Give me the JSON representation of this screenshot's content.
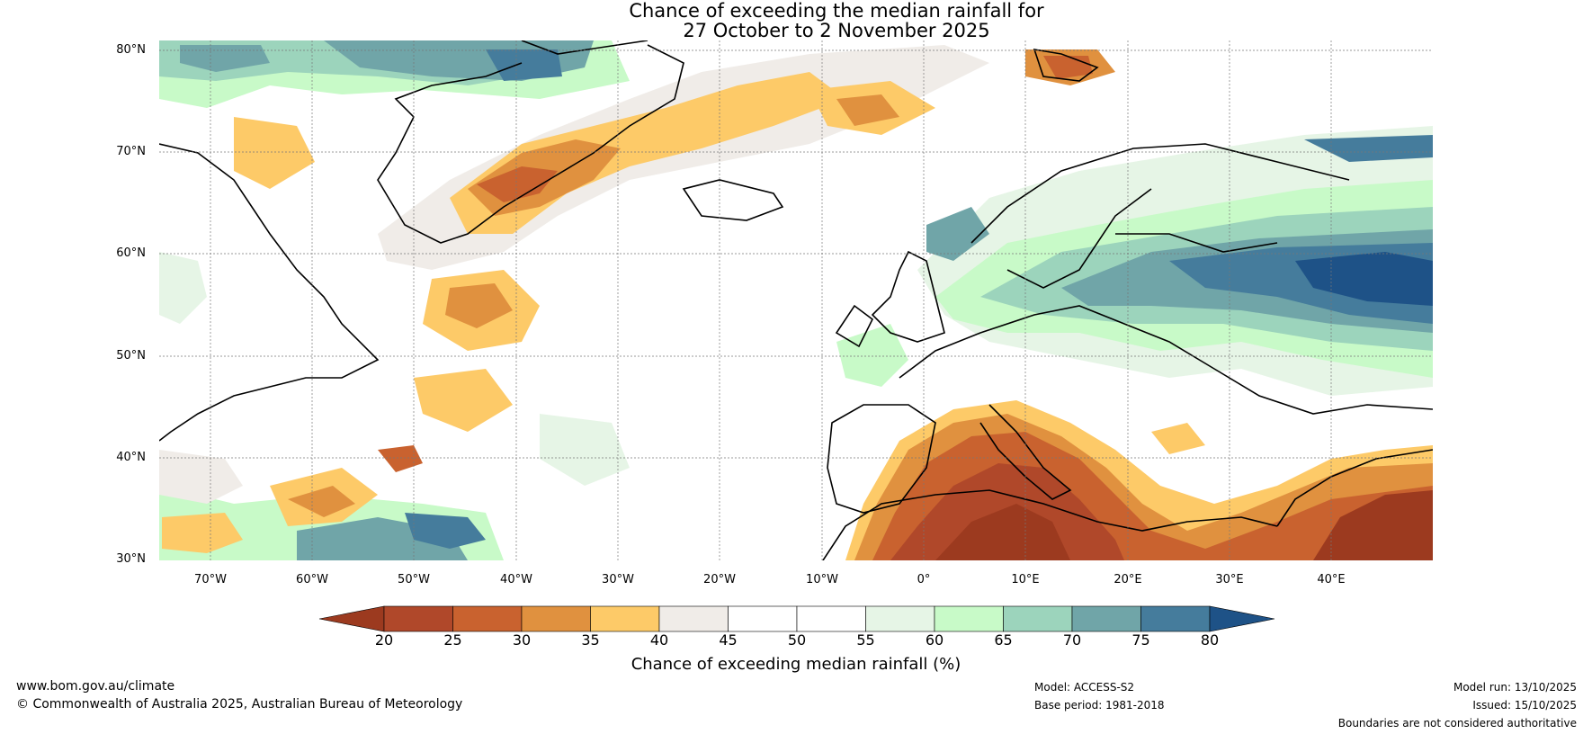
{
  "title": {
    "line1": "Chance of exceeding the median rainfall for",
    "line2": "27 October to 2 November 2025"
  },
  "map": {
    "lat_labels": [
      "80°N",
      "70°N",
      "60°N",
      "50°N",
      "40°N",
      "30°N"
    ],
    "lon_labels": [
      "70°W",
      "60°W",
      "50°W",
      "40°W",
      "30°W",
      "20°W",
      "10°W",
      "0°",
      "10°E",
      "20°E",
      "30°E",
      "40°E"
    ],
    "lat_range": [
      30,
      81
    ],
    "lon_range": [
      -75,
      50
    ]
  },
  "legend": {
    "title": "Chance of exceeding median rainfall (%)",
    "ticks": [
      "20",
      "25",
      "30",
      "35",
      "40",
      "45",
      "50",
      "55",
      "60",
      "65",
      "70",
      "75",
      "80"
    ],
    "colors": [
      "#9c3a1f",
      "#b0482a",
      "#c9622f",
      "#e0913f",
      "#fdca68",
      "#f0ece8",
      "#ffffff",
      "#ffffff",
      "#e6f5e6",
      "#c8fac8",
      "#9cd4bc",
      "#70a5a8",
      "#457c9c",
      "#1e5287"
    ]
  },
  "footer": {
    "website": "www.bom.gov.au/climate",
    "copyright": "© Commonwealth of Australia 2025, Australian Bureau of Meteorology",
    "model": "Model: ACCESS-S2",
    "base_period": "Base period: 1981-2018",
    "model_run": "Model run: 13/10/2025",
    "issued": "Issued: 15/10/2025",
    "disclaimer": "Boundaries are not considered authoritative"
  }
}
